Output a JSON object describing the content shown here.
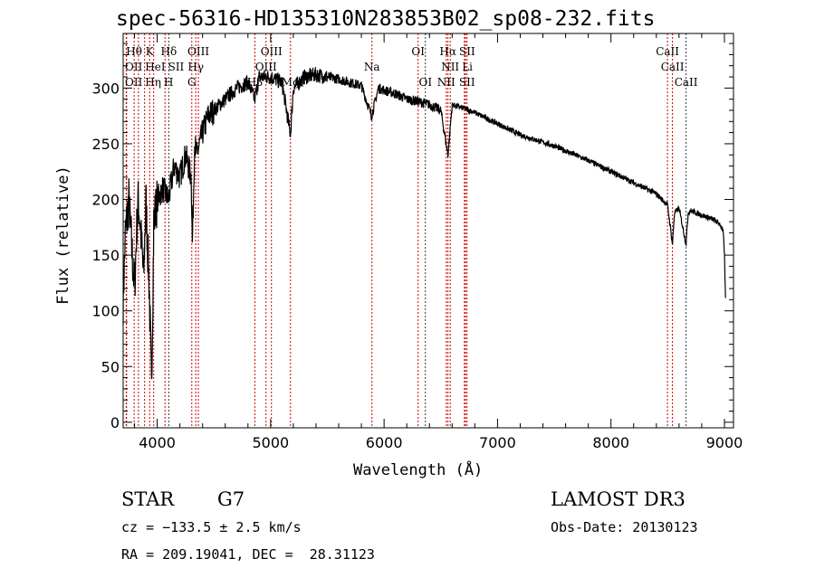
{
  "chart_data": {
    "type": "line",
    "title": "spec-56316-HD135310N283853B02_sp08-232.fits",
    "xlabel": "Wavelength (Å)",
    "ylabel": "Flux (relative)",
    "xlim": [
      3700,
      9080
    ],
    "ylim": [
      -5,
      349
    ],
    "xticks": [
      4000,
      5000,
      6000,
      7000,
      8000,
      9000
    ],
    "yticks": [
      0,
      50,
      100,
      150,
      200,
      250,
      300
    ],
    "grid": false,
    "series": [
      {
        "name": "spectrum",
        "x": [
          3700,
          3720,
          3750,
          3780,
          3800,
          3830,
          3850,
          3880,
          3900,
          3930,
          3950,
          3970,
          4000,
          4050,
          4100,
          4150,
          4200,
          4250,
          4300,
          4310,
          4330,
          4350,
          4400,
          4450,
          4500,
          4600,
          4700,
          4800,
          4860,
          4900,
          5000,
          5100,
          5175,
          5200,
          5300,
          5400,
          5500,
          5600,
          5700,
          5800,
          5890,
          5950,
          6000,
          6100,
          6200,
          6300,
          6400,
          6500,
          6563,
          6600,
          6700,
          6800,
          7000,
          7200,
          7500,
          7800,
          8000,
          8200,
          8400,
          8498,
          8520,
          8542,
          8560,
          8600,
          8662,
          8680,
          8700,
          8800,
          8900,
          8960,
          8990,
          9000,
          9010
        ],
        "y": [
          110,
          170,
          200,
          150,
          120,
          200,
          180,
          130,
          200,
          120,
          30,
          180,
          200,
          210,
          200,
          230,
          220,
          240,
          220,
          160,
          250,
          240,
          260,
          275,
          280,
          290,
          300,
          305,
          290,
          310,
          310,
          305,
          258,
          300,
          310,
          312,
          310,
          308,
          305,
          302,
          275,
          300,
          298,
          295,
          290,
          288,
          285,
          280,
          240,
          285,
          282,
          278,
          268,
          258,
          248,
          235,
          225,
          215,
          205,
          195,
          178,
          160,
          188,
          192,
          160,
          188,
          190,
          186,
          182,
          178,
          170,
          150,
          110
        ]
      }
    ],
    "line_markers": [
      {
        "label": "Hθ",
        "wavelength": 3797,
        "row": 1,
        "color": "#cc0000"
      },
      {
        "label": "K",
        "wavelength": 3934,
        "row": 1,
        "color": "#cc0000"
      },
      {
        "label": "Hδ",
        "wavelength": 4102,
        "row": 1,
        "color": "#333333"
      },
      {
        "label": "OIII",
        "wavelength": 4363,
        "row": 1,
        "color": "#cc0000"
      },
      {
        "label": "OIII",
        "wavelength": 5007,
        "row": 1,
        "color": "#cc0000"
      },
      {
        "label": "OI",
        "wavelength": 6300,
        "row": 1,
        "color": "#cc0000"
      },
      {
        "label": "Hα",
        "wavelength": 6563,
        "row": 1,
        "color": "#cc0000"
      },
      {
        "label": "SII",
        "wavelength": 6717,
        "row": 1,
        "color": "#cc0000"
      },
      {
        "label": "CaII",
        "wavelength": 8498,
        "row": 1,
        "color": "#cc0000"
      },
      {
        "label": "OII",
        "wavelength": 3727,
        "row": 2,
        "color": "#cc0000"
      },
      {
        "label": "HeI",
        "wavelength": 3889,
        "row": 2,
        "color": "#cc0000"
      },
      {
        "label": "SII",
        "wavelength": 4069,
        "row": 2,
        "color": "#cc0000"
      },
      {
        "label": "Hγ",
        "wavelength": 4340,
        "row": 2,
        "color": "#cc0000"
      },
      {
        "label": "OIII",
        "wavelength": 4959,
        "row": 2,
        "color": "#cc0000"
      },
      {
        "label": "Na",
        "wavelength": 5893,
        "row": 2,
        "color": "#cc0000"
      },
      {
        "label": "NII",
        "wavelength": 6583,
        "row": 2,
        "color": "#cc0000"
      },
      {
        "label": "Li",
        "wavelength": 6708,
        "row": 2,
        "color": "#cc0000"
      },
      {
        "label": "CaII",
        "wavelength": 8542,
        "row": 2,
        "color": "#cc0000"
      },
      {
        "label": "OII",
        "wavelength": 3730,
        "row": 3,
        "color": "#cc0000"
      },
      {
        "label": "Hη",
        "wavelength": 3835,
        "row": 3,
        "color": "#cc0000"
      },
      {
        "label": "H",
        "wavelength": 3969,
        "row": 3,
        "color": "#cc0000"
      },
      {
        "label": "G",
        "wavelength": 4305,
        "row": 3,
        "color": "#cc0000"
      },
      {
        "label": "Hβ",
        "wavelength": 4861,
        "row": 3,
        "color": "#cc0000"
      },
      {
        "label": "Mg",
        "wavelength": 5175,
        "row": 3,
        "color": "#cc0000"
      },
      {
        "label": "OI",
        "wavelength": 6364,
        "row": 3,
        "color": "#333333"
      },
      {
        "label": "NII",
        "wavelength": 6548,
        "row": 3,
        "color": "#cc0000"
      },
      {
        "label": "SII",
        "wavelength": 6731,
        "row": 3,
        "color": "#cc0000"
      },
      {
        "label": "CaII",
        "wavelength": 8662,
        "row": 3,
        "color": "#333333"
      }
    ]
  },
  "info": {
    "object_class": "STAR",
    "subclass": "G7",
    "survey": "LAMOST DR3",
    "cz": "cz = −133.5 ± 2.5 km/s",
    "obs_date": "Obs-Date: 20130123",
    "coords": "RA = 209.19041, DEC =  28.31123"
  }
}
